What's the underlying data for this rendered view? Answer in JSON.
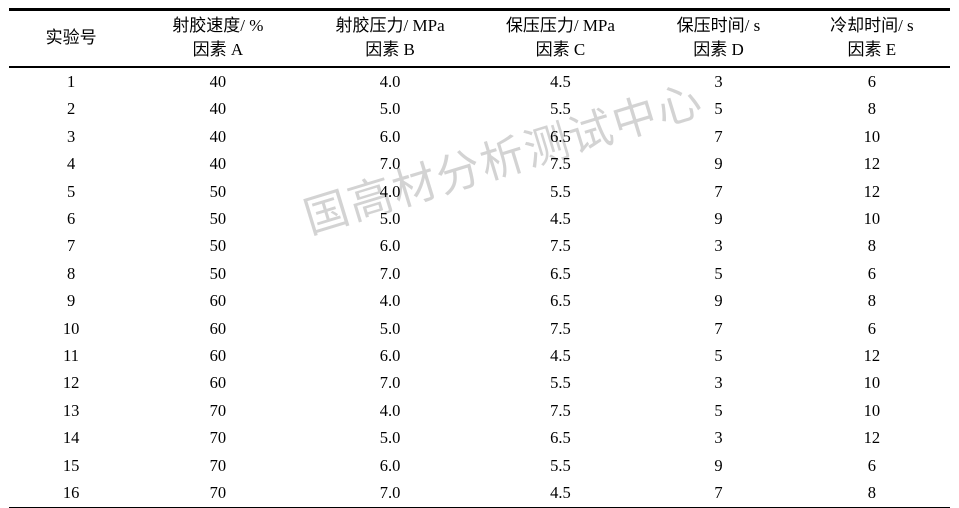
{
  "page": {
    "background": "#ffffff",
    "text_color": "#000000"
  },
  "watermark": {
    "text": "国高材分析测试中心",
    "color": "#afafaf",
    "rotation_deg": -17
  },
  "table": {
    "type": "table",
    "description": "L16 orthogonal experimental design table",
    "columns": [
      {
        "line1": "实验号",
        "line2": ""
      },
      {
        "line1": "射胶速度/ %",
        "line2": "因素 A"
      },
      {
        "line1": "射胶压力/ MPa",
        "line2": "因素 B"
      },
      {
        "line1": "保压压力/ MPa",
        "line2": "因素 C"
      },
      {
        "line1": "保压时间/ s",
        "line2": "因素 D"
      },
      {
        "line1": "冷却时间/ s",
        "line2": "因素 E"
      }
    ],
    "rows": [
      [
        "1",
        "40",
        "4.0",
        "4.5",
        "3",
        "6"
      ],
      [
        "2",
        "40",
        "5.0",
        "5.5",
        "5",
        "8"
      ],
      [
        "3",
        "40",
        "6.0",
        "6.5",
        "7",
        "10"
      ],
      [
        "4",
        "40",
        "7.0",
        "7.5",
        "9",
        "12"
      ],
      [
        "5",
        "50",
        "4.0",
        "5.5",
        "7",
        "12"
      ],
      [
        "6",
        "50",
        "5.0",
        "4.5",
        "9",
        "10"
      ],
      [
        "7",
        "50",
        "6.0",
        "7.5",
        "3",
        "8"
      ],
      [
        "8",
        "50",
        "7.0",
        "6.5",
        "5",
        "6"
      ],
      [
        "9",
        "60",
        "4.0",
        "6.5",
        "9",
        "8"
      ],
      [
        "10",
        "60",
        "5.0",
        "7.5",
        "7",
        "6"
      ],
      [
        "11",
        "60",
        "6.0",
        "4.5",
        "5",
        "12"
      ],
      [
        "12",
        "60",
        "7.0",
        "5.5",
        "3",
        "10"
      ],
      [
        "13",
        "70",
        "4.0",
        "7.5",
        "5",
        "10"
      ],
      [
        "14",
        "70",
        "5.0",
        "6.5",
        "3",
        "12"
      ],
      [
        "15",
        "70",
        "6.0",
        "5.5",
        "9",
        "6"
      ],
      [
        "16",
        "70",
        "7.0",
        "4.5",
        "7",
        "8"
      ]
    ]
  }
}
